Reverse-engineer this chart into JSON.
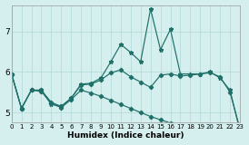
{
  "xlabel": "Humidex (Indice chaleur)",
  "background_color": "#d5eeee",
  "grid_color_major": "#b0d8d8",
  "grid_color_minor": "#c8e8e8",
  "line_color": "#1e7068",
  "xlim": [
    0,
    23
  ],
  "ylim": [
    4.75,
    7.65
  ],
  "yticks": [
    5,
    6,
    7
  ],
  "xticks": [
    0,
    1,
    2,
    3,
    4,
    5,
    6,
    7,
    8,
    9,
    10,
    11,
    12,
    13,
    14,
    15,
    16,
    17,
    18,
    19,
    20,
    21,
    22,
    23
  ],
  "line_upper_x": [
    0,
    1,
    2,
    3,
    4,
    5,
    6,
    7,
    8,
    9,
    10,
    11,
    12,
    13,
    14,
    15,
    16,
    17,
    18,
    19,
    20,
    21,
    22,
    23
  ],
  "line_upper_y": [
    5.95,
    5.1,
    5.55,
    5.55,
    5.2,
    5.15,
    5.35,
    5.7,
    5.72,
    5.85,
    6.25,
    6.68,
    6.48,
    6.25,
    7.55,
    6.55,
    7.05,
    5.95,
    5.95,
    5.95,
    6.0,
    5.85,
    5.55,
    4.55
  ],
  "line_mid_x": [
    0,
    1,
    2,
    3,
    4,
    5,
    6,
    7,
    8,
    9,
    10,
    11,
    12,
    13,
    14,
    15,
    16,
    17,
    18,
    19,
    20,
    21,
    22,
    23
  ],
  "line_mid_y": [
    5.95,
    5.1,
    5.55,
    5.55,
    5.25,
    5.15,
    5.35,
    5.68,
    5.7,
    5.8,
    5.98,
    6.05,
    5.88,
    5.75,
    5.62,
    5.92,
    5.95,
    5.9,
    5.92,
    5.95,
    5.98,
    5.88,
    5.5,
    4.6
  ],
  "line_lower_x": [
    0,
    1,
    2,
    3,
    4,
    5,
    6,
    7,
    8,
    9,
    10,
    11,
    12,
    13,
    14,
    15,
    16,
    17,
    18,
    19,
    20,
    21,
    22,
    23
  ],
  "line_lower_y": [
    5.95,
    5.1,
    5.55,
    5.52,
    5.22,
    5.12,
    5.32,
    5.55,
    5.48,
    5.4,
    5.3,
    5.2,
    5.1,
    5.0,
    4.9,
    4.82,
    4.74,
    4.68,
    4.62,
    4.56,
    4.52,
    4.48,
    4.44,
    4.4
  ]
}
